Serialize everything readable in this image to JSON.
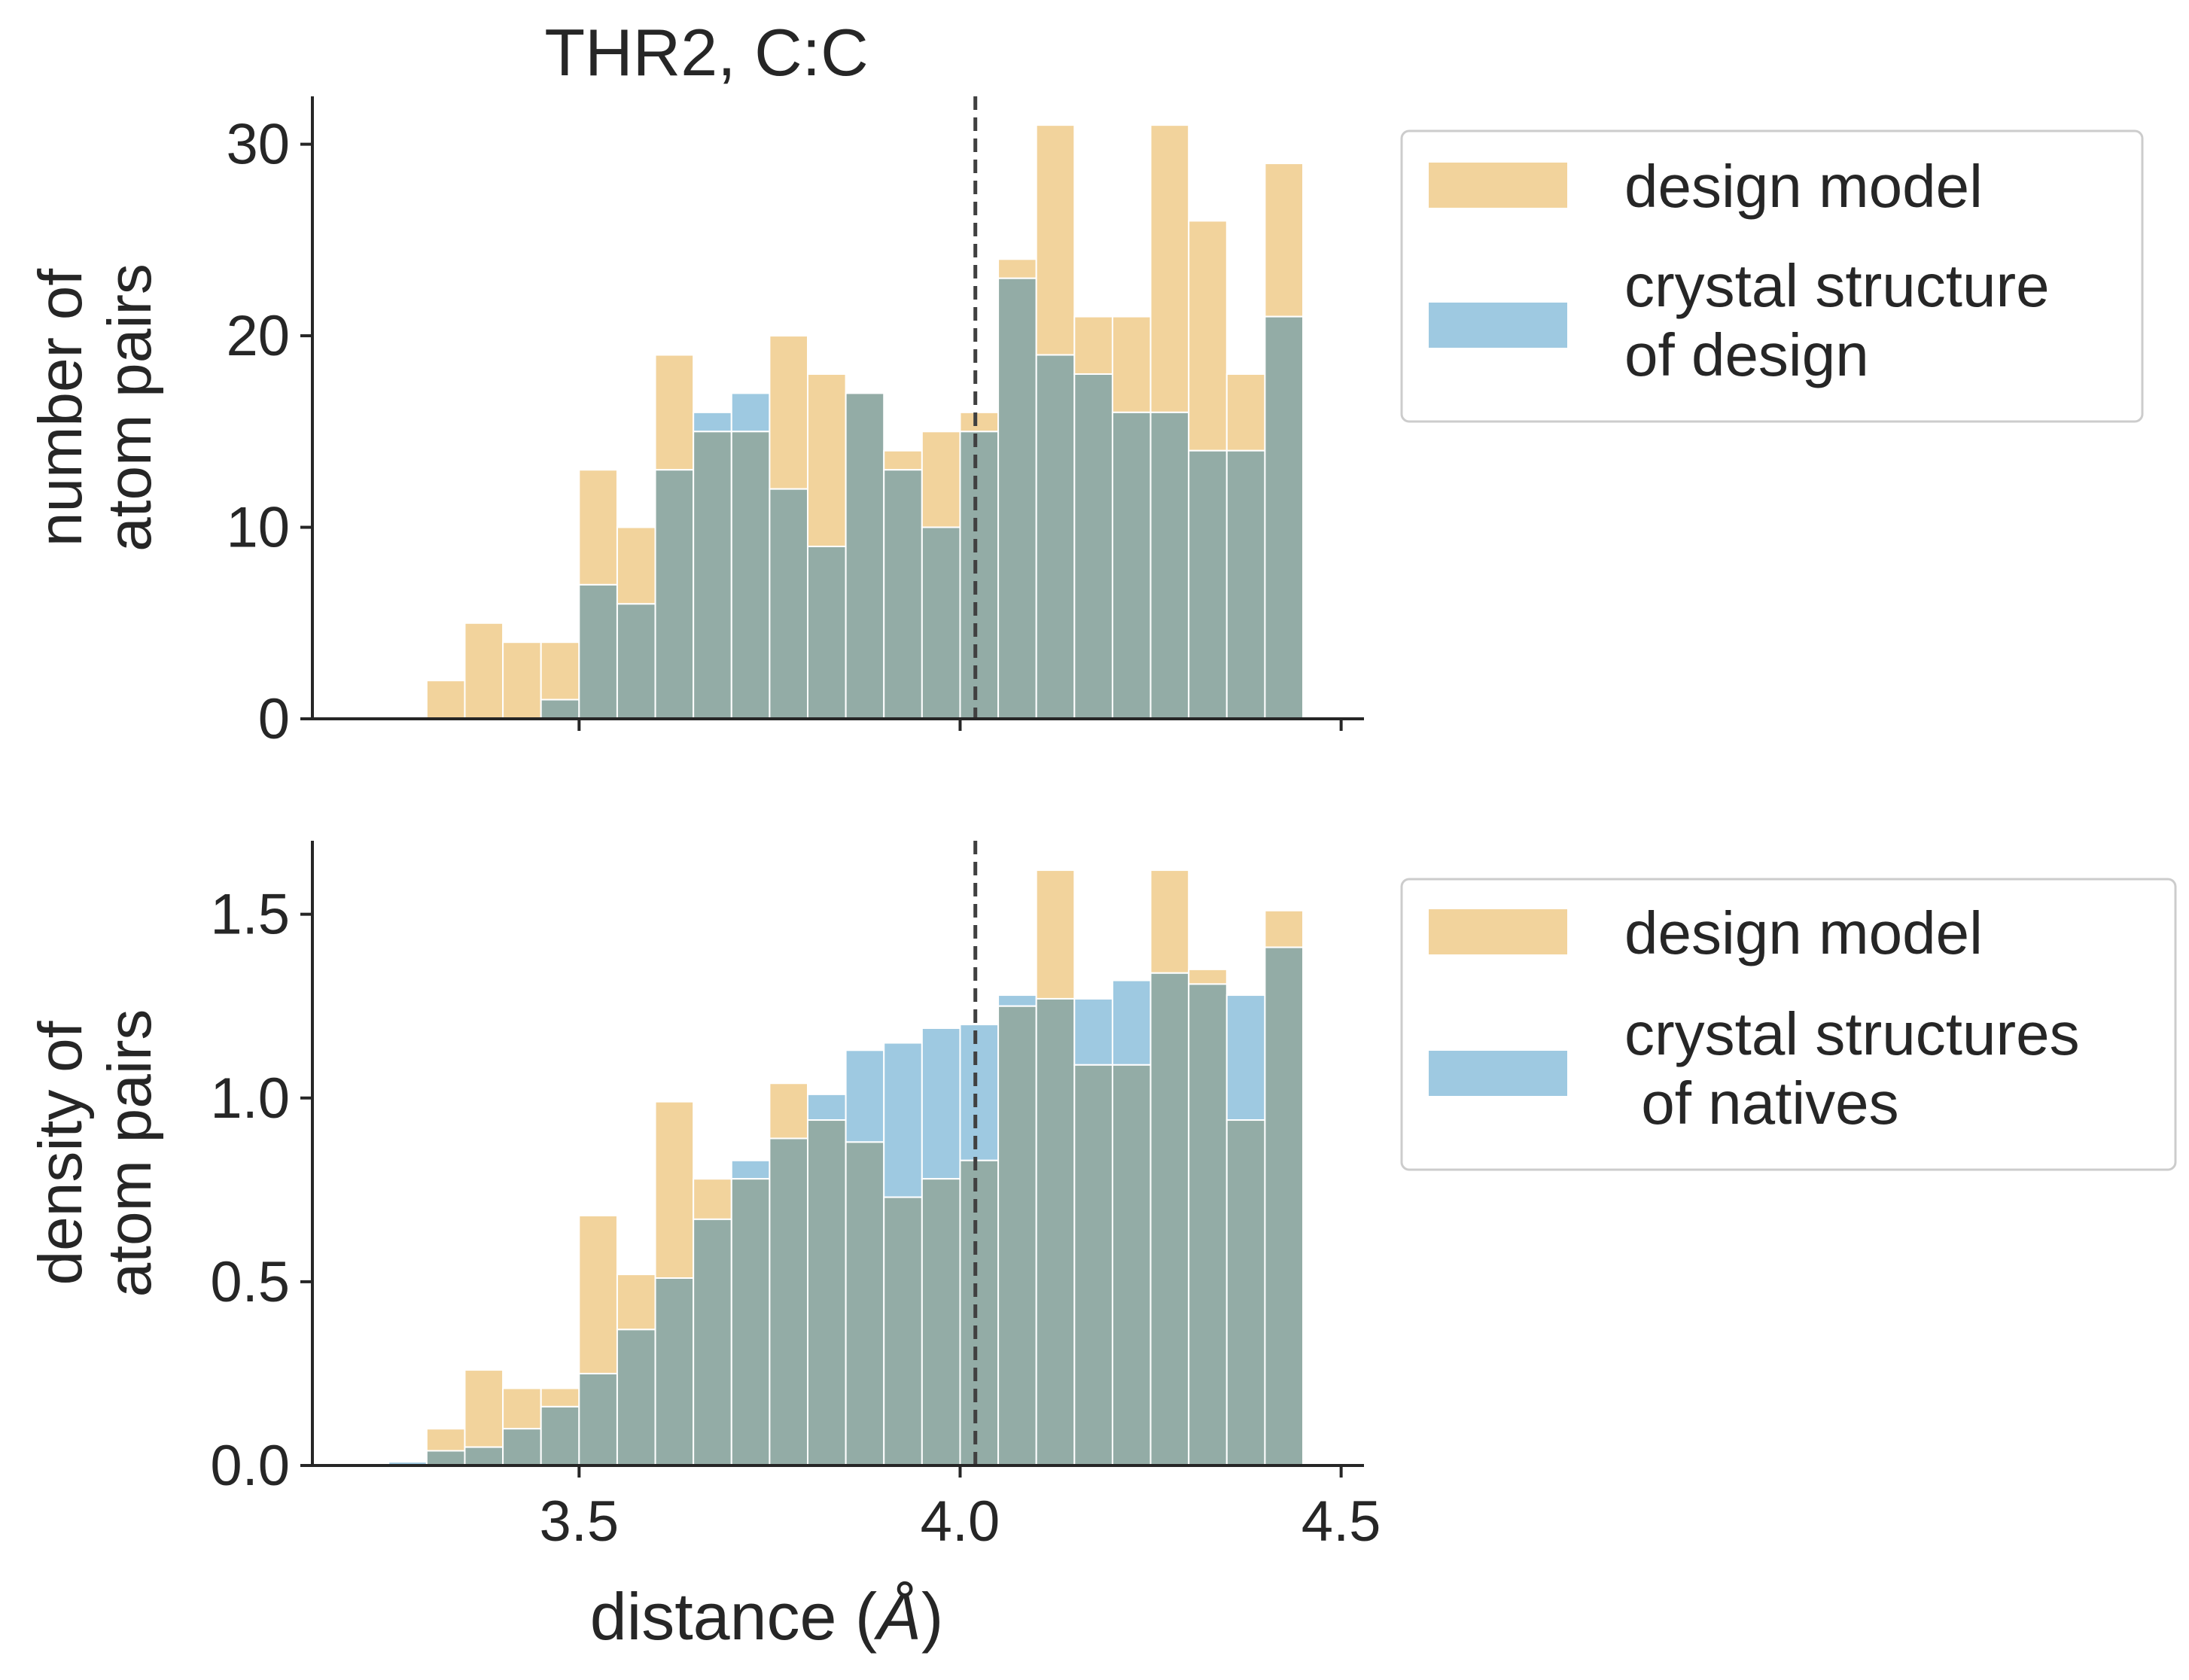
{
  "title": "THR2, C:C",
  "colors": {
    "design": "#f2d39c",
    "crystal": "#9ec9e1",
    "overlap": "#93aca6",
    "bar_edge": "#ffffff",
    "axis": "#262626",
    "cutoff_line": "#404040",
    "legend_border": "#cccccc"
  },
  "chart_data": [
    {
      "type": "bar",
      "subtype": "overlaid-histogram",
      "title": "THR2, C:C",
      "xlabel": "",
      "ylabel_lines": [
        "number of",
        "atom pairs"
      ],
      "xlim": [
        3.15,
        4.53
      ],
      "ylim": [
        0,
        32.5
      ],
      "xticks": [
        3.5,
        4.0,
        4.5
      ],
      "xtick_labels_visible": false,
      "yticks": [
        0,
        10,
        20,
        30
      ],
      "ytick_labels": [
        "0",
        "10",
        "20",
        "30"
      ],
      "bin_start": 3.25,
      "bin_width": 0.05,
      "cutoff_x": 4.02,
      "grid": false,
      "legend_position": "outside-right-top",
      "series": [
        {
          "name": "design model",
          "color_key": "design",
          "values": [
            0,
            2,
            5,
            4,
            4,
            13,
            10,
            19,
            15,
            15,
            20,
            18,
            17,
            14,
            15,
            16,
            24,
            31,
            21,
            21,
            31,
            26,
            18,
            29
          ]
        },
        {
          "name": "crystal structure of design",
          "legend_lines": [
            "crystal structure",
            "of design"
          ],
          "color_key": "crystal",
          "values": [
            0,
            0,
            0,
            0,
            1,
            7,
            6,
            13,
            16,
            17,
            12,
            9,
            17,
            13,
            10,
            15,
            23,
            19,
            18,
            16,
            16,
            14,
            14,
            21
          ]
        }
      ]
    },
    {
      "type": "bar",
      "subtype": "overlaid-histogram",
      "title": "",
      "xlabel": "distance (Å)",
      "xlabel_prefix": "distance (",
      "xlabel_unit": "Å",
      "xlabel_suffix": ")",
      "ylabel_lines": [
        "density of",
        "atom pairs"
      ],
      "xlim": [
        3.15,
        4.53
      ],
      "ylim": [
        0,
        1.7
      ],
      "xticks": [
        3.5,
        4.0,
        4.5
      ],
      "xtick_labels": [
        "3.5",
        "4.0",
        "4.5"
      ],
      "yticks": [
        0,
        0.5,
        1.0,
        1.5
      ],
      "ytick_labels": [
        "0.0",
        "0.5",
        "1.0",
        "1.5"
      ],
      "bin_start": 3.25,
      "bin_width": 0.05,
      "cutoff_x": 4.02,
      "grid": false,
      "legend_position": "outside-right-top",
      "series": [
        {
          "name": "design model",
          "color_key": "design",
          "values": [
            0,
            0.1,
            0.26,
            0.21,
            0.21,
            0.68,
            0.52,
            0.99,
            0.78,
            0.78,
            1.04,
            0.94,
            0.88,
            0.73,
            0.78,
            0.83,
            1.25,
            1.62,
            1.09,
            1.09,
            1.62,
            1.35,
            0.94,
            1.51
          ]
        },
        {
          "name": "crystal structures of natives",
          "legend_lines": [
            "crystal structures",
            " of natives"
          ],
          "color_key": "crystal",
          "values": [
            0.01,
            0.04,
            0.05,
            0.1,
            0.16,
            0.25,
            0.37,
            0.51,
            0.67,
            0.83,
            0.89,
            1.01,
            1.13,
            1.15,
            1.19,
            1.2,
            1.28,
            1.27,
            1.27,
            1.32,
            1.34,
            1.31,
            1.28,
            1.41
          ]
        }
      ]
    }
  ]
}
